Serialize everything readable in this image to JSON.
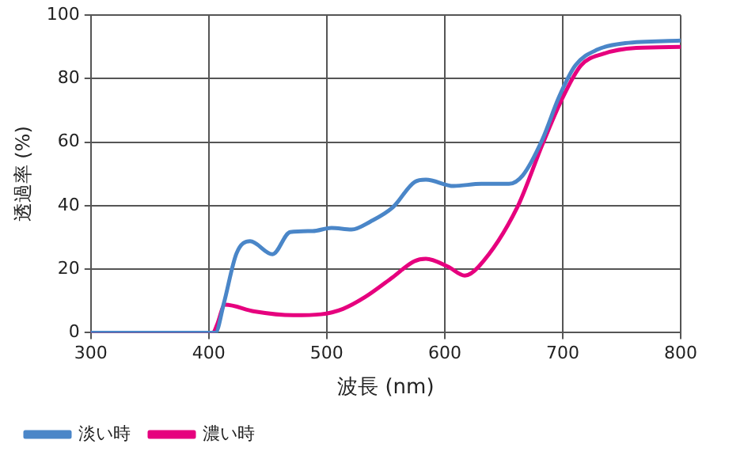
{
  "chart_data": {
    "type": "line",
    "xlabel": "波長 (nm)",
    "ylabel": "透過率 (%)",
    "xlim": [
      300,
      800
    ],
    "xticks": [
      300,
      400,
      500,
      600,
      700,
      800
    ],
    "ylim": [
      0,
      100
    ],
    "yticks": [
      0,
      20,
      40,
      60,
      80,
      100
    ],
    "grid": true,
    "legend": "bottom left",
    "marker": "none",
    "line_style": "solid",
    "series": [
      {
        "name": "淡い時",
        "color": "#4a86c8",
        "x": [
          300,
          405.6,
          412.7,
          423.5,
          435,
          454,
          469,
          488,
          504,
          521,
          537,
          556,
          574.6,
          584,
          607.6,
          631,
          654.5,
          666,
          682.7,
          696.8,
          710.8,
          729.6,
          753,
          800
        ],
        "values": [
          0,
          0,
          9.2,
          25,
          28.8,
          24.7,
          31.7,
          32,
          33,
          32.5,
          35,
          39.5,
          47.5,
          48.2,
          46.2,
          46.9,
          46.9,
          49.5,
          60.8,
          74.2,
          84.2,
          89.2,
          91.2,
          92
        ]
      },
      {
        "name": "濃い時",
        "color": "#e6007e",
        "x": [
          300,
          403.5,
          407,
          413.7,
          438.6,
          471.4,
          495,
          513.7,
          532.4,
          556,
          574,
          584,
          602.8,
          617,
          628.7,
          661.5,
          682.7,
          699,
          715.5,
          734,
          762.5,
          800
        ],
        "values": [
          0,
          0,
          2.5,
          8.8,
          6.7,
          5.5,
          5.8,
          7.5,
          11.2,
          17.5,
          22.5,
          23.3,
          20.8,
          18,
          20.8,
          39.5,
          59.2,
          73.3,
          84.2,
          87.8,
          89.7,
          90
        ]
      }
    ]
  }
}
